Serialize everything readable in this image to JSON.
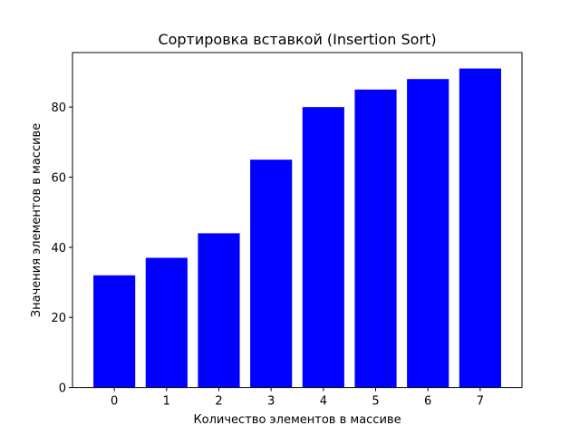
{
  "chart_data": {
    "type": "bar",
    "title": "Сортировка вставкой (Insertion Sort)",
    "xlabel": "Количество элементов в массиве",
    "ylabel": "Значения элементов в массиве",
    "categories": [
      "0",
      "1",
      "2",
      "3",
      "4",
      "5",
      "6",
      "7"
    ],
    "values": [
      32,
      37,
      44,
      65,
      80,
      85,
      88,
      91
    ],
    "bar_color": "#0000ff",
    "ylim": [
      0,
      95.55
    ],
    "xlim": [
      -0.8,
      7.8
    ],
    "yticks": [
      0,
      20,
      40,
      60,
      80
    ],
    "grid": false
  }
}
